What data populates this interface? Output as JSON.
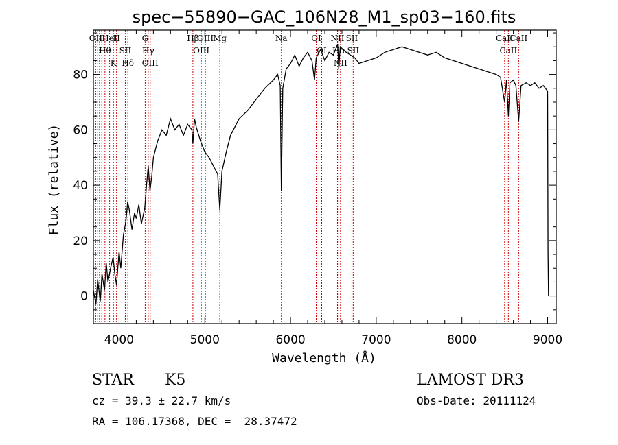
{
  "chart_data": {
    "type": "line",
    "title": "spec−55890−GAC_106N28_M1_sp03−160.fits",
    "xlabel": "Wavelength (Å)",
    "ylabel": "Flux (relative)",
    "xlim": [
      3700,
      9100
    ],
    "ylim": [
      -10,
      96
    ],
    "xticks": [
      4000,
      5000,
      6000,
      7000,
      8000,
      9000
    ],
    "yticks": [
      0,
      20,
      40,
      60,
      80
    ],
    "grid": false,
    "series": [
      {
        "name": "flux",
        "points": [
          [
            3700,
            2
          ],
          [
            3730,
            -3
          ],
          [
            3750,
            6
          ],
          [
            3780,
            -2
          ],
          [
            3800,
            8
          ],
          [
            3830,
            2
          ],
          [
            3850,
            12
          ],
          [
            3870,
            5
          ],
          [
            3900,
            10
          ],
          [
            3930,
            14
          ],
          [
            3950,
            8
          ],
          [
            3970,
            4
          ],
          [
            4000,
            16
          ],
          [
            4020,
            10
          ],
          [
            4050,
            22
          ],
          [
            4080,
            27
          ],
          [
            4100,
            34
          ],
          [
            4120,
            31
          ],
          [
            4150,
            24
          ],
          [
            4180,
            30
          ],
          [
            4200,
            28
          ],
          [
            4230,
            33
          ],
          [
            4260,
            26
          ],
          [
            4300,
            32
          ],
          [
            4320,
            40
          ],
          [
            4340,
            47
          ],
          [
            4360,
            38
          ],
          [
            4380,
            43
          ],
          [
            4400,
            50
          ],
          [
            4450,
            56
          ],
          [
            4500,
            60
          ],
          [
            4550,
            58
          ],
          [
            4600,
            64
          ],
          [
            4650,
            60
          ],
          [
            4700,
            62
          ],
          [
            4750,
            58
          ],
          [
            4800,
            62
          ],
          [
            4850,
            60
          ],
          [
            4861,
            55
          ],
          [
            4880,
            64
          ],
          [
            4900,
            61
          ],
          [
            4950,
            56
          ],
          [
            5000,
            52
          ],
          [
            5050,
            50
          ],
          [
            5100,
            47
          ],
          [
            5150,
            44
          ],
          [
            5175,
            31
          ],
          [
            5200,
            45
          ],
          [
            5250,
            52
          ],
          [
            5300,
            58
          ],
          [
            5400,
            64
          ],
          [
            5500,
            67
          ],
          [
            5600,
            71
          ],
          [
            5700,
            75
          ],
          [
            5800,
            78
          ],
          [
            5850,
            80
          ],
          [
            5880,
            76
          ],
          [
            5893,
            38
          ],
          [
            5910,
            75
          ],
          [
            5950,
            82
          ],
          [
            6000,
            84
          ],
          [
            6050,
            87
          ],
          [
            6100,
            83
          ],
          [
            6150,
            86
          ],
          [
            6200,
            88
          ],
          [
            6250,
            85
          ],
          [
            6280,
            78
          ],
          [
            6300,
            86
          ],
          [
            6350,
            89
          ],
          [
            6400,
            85
          ],
          [
            6450,
            88
          ],
          [
            6500,
            87
          ],
          [
            6550,
            91
          ],
          [
            6563,
            82
          ],
          [
            6580,
            90
          ],
          [
            6650,
            88
          ],
          [
            6700,
            87
          ],
          [
            6750,
            86
          ],
          [
            6800,
            84
          ],
          [
            6900,
            85
          ],
          [
            7000,
            86
          ],
          [
            7100,
            88
          ],
          [
            7200,
            89
          ],
          [
            7300,
            90
          ],
          [
            7400,
            89
          ],
          [
            7500,
            88
          ],
          [
            7600,
            87
          ],
          [
            7700,
            88
          ],
          [
            7800,
            86
          ],
          [
            7900,
            85
          ],
          [
            8000,
            84
          ],
          [
            8100,
            83
          ],
          [
            8200,
            82
          ],
          [
            8300,
            81
          ],
          [
            8400,
            80
          ],
          [
            8450,
            79
          ],
          [
            8498,
            70
          ],
          [
            8520,
            78
          ],
          [
            8542,
            65
          ],
          [
            8560,
            77
          ],
          [
            8600,
            78
          ],
          [
            8630,
            76
          ],
          [
            8662,
            63
          ],
          [
            8690,
            76
          ],
          [
            8750,
            77
          ],
          [
            8800,
            76
          ],
          [
            8850,
            77
          ],
          [
            8900,
            75
          ],
          [
            8950,
            76
          ],
          [
            9000,
            74
          ],
          [
            9005,
            16
          ],
          [
            9010,
            0
          ]
        ]
      }
    ],
    "lines": [
      {
        "wave": 3727,
        "label": "OII"
      },
      {
        "wave": 3750,
        "label": ""
      },
      {
        "wave": 3771,
        "label": ""
      },
      {
        "wave": 3798,
        "label": ""
      },
      {
        "wave": 3835,
        "label": "Hθ"
      },
      {
        "wave": 3889,
        "label": "HeI"
      },
      {
        "wave": 3934,
        "label": "K"
      },
      {
        "wave": 3970,
        "label": "H"
      },
      {
        "wave": 4072,
        "label": "SII"
      },
      {
        "wave": 4102,
        "label": "Hδ"
      },
      {
        "wave": 4304,
        "label": "G"
      },
      {
        "wave": 4340,
        "label": "Hγ"
      },
      {
        "wave": 4363,
        "label": "OIII"
      },
      {
        "wave": 4861,
        "label": "Hβ"
      },
      {
        "wave": 4959,
        "label": "OIII"
      },
      {
        "wave": 5007,
        "label": "OIII"
      },
      {
        "wave": 5175,
        "label": "Mg"
      },
      {
        "wave": 5893,
        "label": "Na"
      },
      {
        "wave": 6300,
        "label": "OI"
      },
      {
        "wave": 6364,
        "label": "OI"
      },
      {
        "wave": 6548,
        "label": "NII"
      },
      {
        "wave": 6563,
        "label": "Hα"
      },
      {
        "wave": 6583,
        "label": "NII"
      },
      {
        "wave": 6716,
        "label": "SII"
      },
      {
        "wave": 6731,
        "label": "SII"
      },
      {
        "wave": 8498,
        "label": "CaII"
      },
      {
        "wave": 8542,
        "label": "CaII"
      },
      {
        "wave": 8662,
        "label": "CaII"
      }
    ],
    "line_color": "#cc0000",
    "spectrum_color": "#000000"
  },
  "info": {
    "class_label": "STAR",
    "subclass": "K5",
    "velocity": "cz = 39.3 ± 22.7 km/s",
    "coords": "RA = 106.17368, DEC =  28.37472",
    "survey": "LAMOST DR3",
    "obs_date": "Obs-Date: 20111124"
  }
}
